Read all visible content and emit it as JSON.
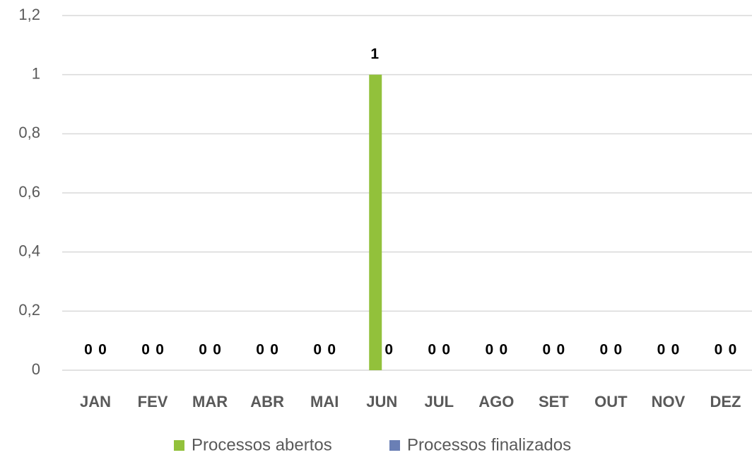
{
  "chart_data": {
    "type": "bar",
    "categories": [
      "JAN",
      "FEV",
      "MAR",
      "ABR",
      "MAI",
      "JUN",
      "JUL",
      "AGO",
      "SET",
      "OUT",
      "NOV",
      "DEZ"
    ],
    "series": [
      {
        "name": "Processos abertos",
        "color": "#92c13b",
        "values": [
          0,
          0,
          0,
          0,
          0,
          1,
          0,
          0,
          0,
          0,
          0,
          0
        ]
      },
      {
        "name": "Processos finalizados",
        "color": "#6a7fb5",
        "values": [
          0,
          0,
          0,
          0,
          0,
          0,
          0,
          0,
          0,
          0,
          0,
          0
        ]
      }
    ],
    "ylim": [
      0,
      1.2
    ],
    "yticks": [
      0,
      {
        "value": 0.2,
        "label": "0,2"
      },
      {
        "value": 0.4,
        "label": "0,4"
      },
      {
        "value": 0.6,
        "label": "0,6"
      },
      {
        "value": 0.8,
        "label": "0,8"
      },
      1,
      {
        "value": 1.2,
        "label": "1,2"
      }
    ],
    "grid": true,
    "legend": "bottom"
  }
}
